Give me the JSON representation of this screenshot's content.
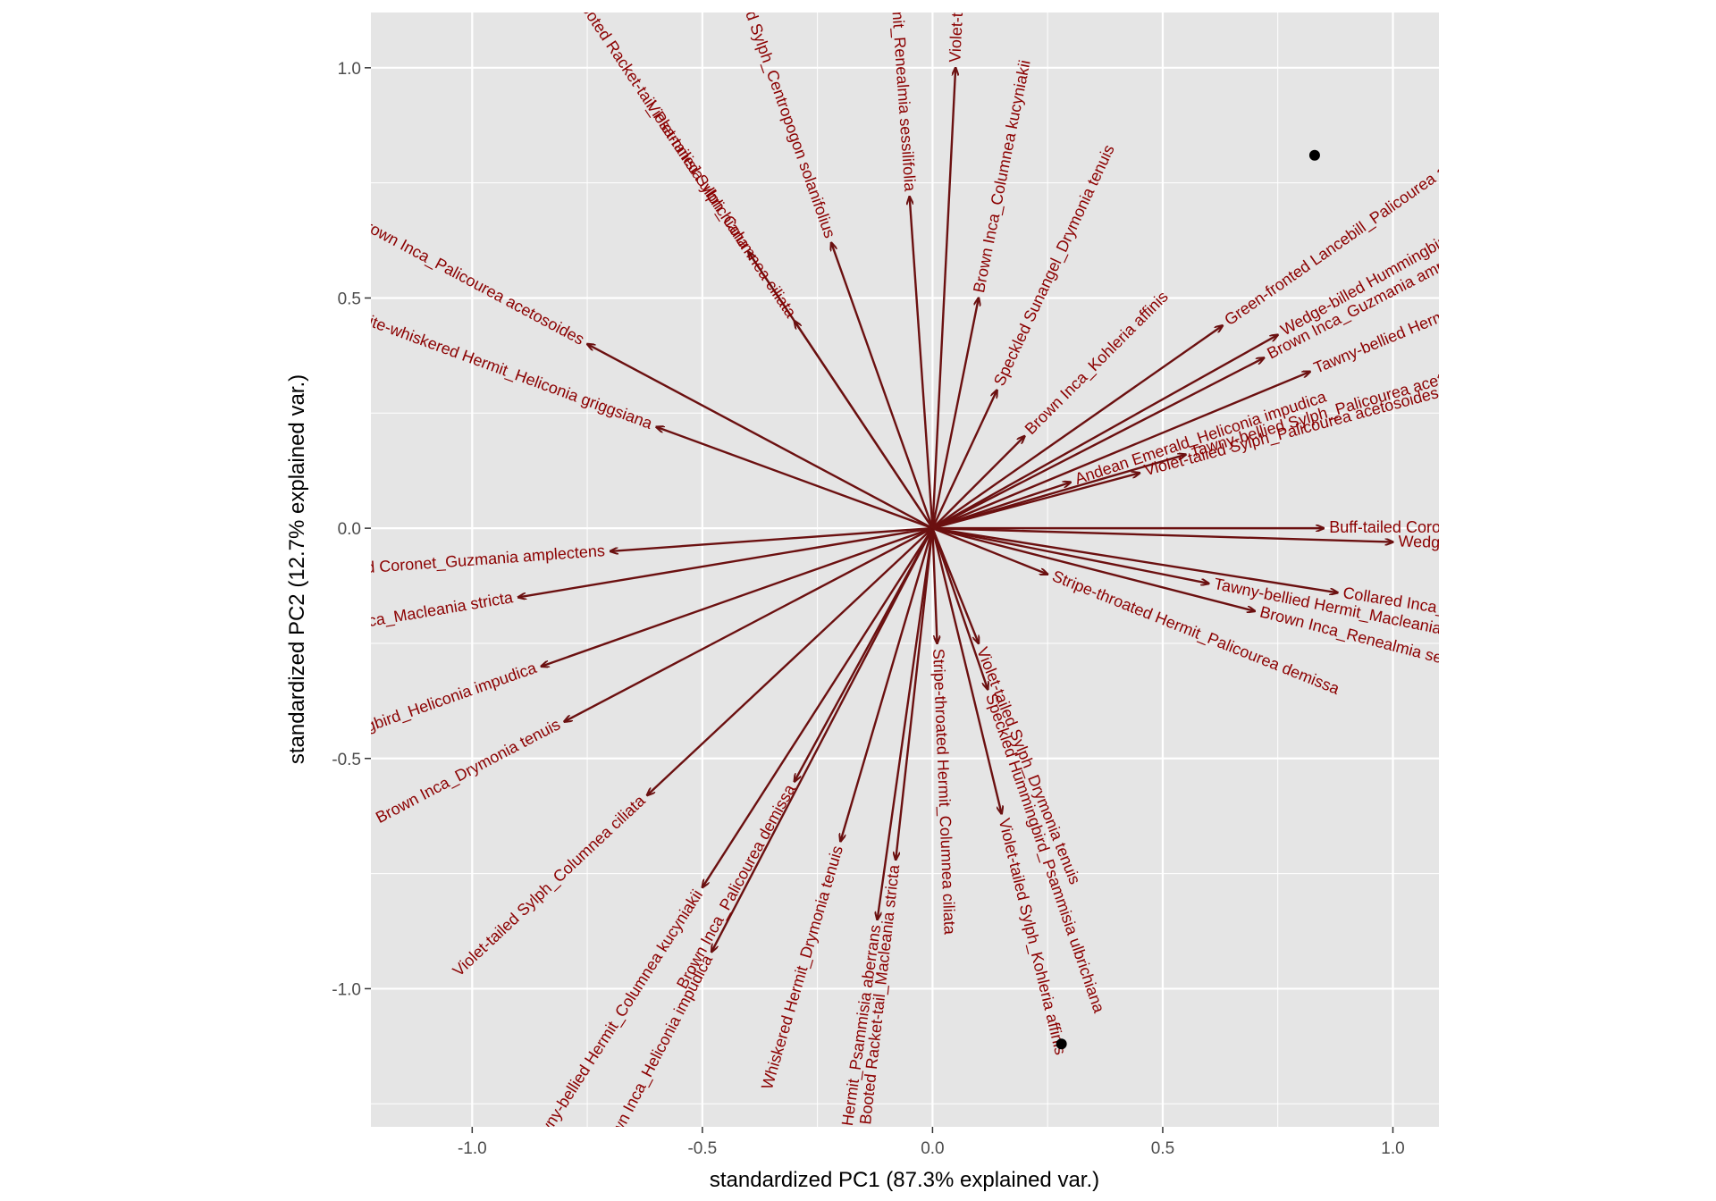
{
  "chart_data": {
    "type": "scatter",
    "subtype": "biplot",
    "title": "",
    "xlabel": "standardized PC1 (87.3% explained var.)",
    "ylabel": "standardized PC2 (12.7% explained var.)",
    "xlim": [
      -1.22,
      1.1
    ],
    "ylim": [
      -1.3,
      1.12
    ],
    "x_ticks": [
      -1.0,
      -0.5,
      0.0,
      0.5,
      1.0
    ],
    "x_tick_labels": [
      "-1.0",
      "-0.5",
      "0.0",
      "0.5",
      "1.0"
    ],
    "y_ticks": [
      -1.0,
      -0.5,
      0.0,
      0.5,
      1.0
    ],
    "y_tick_labels": [
      "-1.0",
      "-0.5",
      "0.0",
      "0.5",
      "1.0"
    ],
    "grid": true,
    "colors": {
      "panel_background": "#e5e5e5",
      "gridline": "#ffffff",
      "arrow": "#6b1010",
      "label": "#8b0000",
      "point": "#000000"
    },
    "points": [
      {
        "x": 0.83,
        "y": 0.81
      },
      {
        "x": 0.28,
        "y": -1.12
      }
    ],
    "arrows": [
      {
        "label": "Green-fronted Lancebill_Palicourea acetosoides",
        "x": 0.63,
        "y": 0.44
      },
      {
        "label": "Wedge-billed Hummingbird_Heliconia griggsiana",
        "x": 0.75,
        "y": 0.42
      },
      {
        "label": "Brown Inca_Guzmania amplectens",
        "x": 0.72,
        "y": 0.37
      },
      {
        "label": "Tawny-bellied Hermit_Columnea kucyniakii",
        "x": 0.82,
        "y": 0.34
      },
      {
        "label": "Tawny-bellied Sylph_Palicourea acetosoides",
        "x": 0.55,
        "y": 0.16
      },
      {
        "label": "Violet-tailed Sylph_Palicourea acetosoides",
        "x": 0.45,
        "y": 0.12
      },
      {
        "label": "Buff-tailed Coronet_Palicourea lineata",
        "x": 0.85,
        "y": 0.0
      },
      {
        "label": "Wedge-billed Hummingbird_Gasteranthus lateralis",
        "x": 1.0,
        "y": -0.03
      },
      {
        "label": "Collared Inca_Pitcairnia sodiroi",
        "x": 0.88,
        "y": -0.14
      },
      {
        "label": "Brown Inca_Renealmia sessilifolia",
        "x": 0.7,
        "y": -0.18
      },
      {
        "label": "Tawny-bellied Hermit_Macleania bullata",
        "x": 0.6,
        "y": -0.12
      },
      {
        "label": "Stripe-throated Hermit_Palicourea demissa",
        "x": 0.25,
        "y": -0.1
      },
      {
        "label": "Violet-tailed Sylph_Kohleria affinis",
        "x": 0.15,
        "y": -0.62
      },
      {
        "label": "Speckled Hummingbird_Psammisia ulbrichiana",
        "x": 0.12,
        "y": -0.35
      },
      {
        "label": "Violet-tailed Sylph_Drymonia tenuis",
        "x": 0.1,
        "y": -0.25
      },
      {
        "label": "Stripe-throated Hermit_Columnea ciliata",
        "x": 0.01,
        "y": -0.25
      },
      {
        "label": "Booted Racket-tail_Macleania stricta",
        "x": -0.08,
        "y": -0.72
      },
      {
        "label": "Tawny-bellied Hermit_Psammisia aberrans",
        "x": -0.12,
        "y": -0.85
      },
      {
        "label": "Whiskered Hermit_Drymonia tenuis",
        "x": -0.2,
        "y": -0.68
      },
      {
        "label": "Brown Inca_Palicourea demissa",
        "x": -0.3,
        "y": -0.55
      },
      {
        "label": "Brown Inca_Heliconia impudica",
        "x": -0.48,
        "y": -0.92
      },
      {
        "label": "Tawny-bellied Hermit_Columnea kucyniakii",
        "x": -0.5,
        "y": -0.78
      },
      {
        "label": "Violet-tailed Sylph_Columnea ciliata",
        "x": -0.62,
        "y": -0.58
      },
      {
        "label": "Brown Inca_Drymonia tenuis",
        "x": -0.8,
        "y": -0.42
      },
      {
        "label": "Speckled Hummingbird_Heliconia impudica",
        "x": -0.85,
        "y": -0.3
      },
      {
        "label": "Collared Inca_Macleania stricta",
        "x": -0.9,
        "y": -0.15
      },
      {
        "label": "Buff-tailed Coronet_Guzmania amplectens",
        "x": -0.7,
        "y": -0.05
      },
      {
        "label": "White-whiskered Hermit_Heliconia griggsiana",
        "x": -0.6,
        "y": 0.22
      },
      {
        "label": "Brown Inca_Palicourea acetosoides",
        "x": -0.75,
        "y": 0.4
      },
      {
        "label": "Booted Racket-tail_Psammisia ulbrichiana",
        "x": -0.4,
        "y": 0.6
      },
      {
        "label": "Violet-tailed Sylph_Columnea ciliata",
        "x": -0.3,
        "y": 0.45
      },
      {
        "label": "Violet-tailed Sylph_Palicourea lineata",
        "x": 0.05,
        "y": 1.0
      },
      {
        "label": "Brown Inca_Columnea kucyniakii",
        "x": 0.1,
        "y": 0.5
      },
      {
        "label": "Speckled Sunangel_Drymonia tenuis",
        "x": 0.14,
        "y": 0.3
      },
      {
        "label": "Brown Inca_Kohleria affinis",
        "x": 0.2,
        "y": 0.2
      },
      {
        "label": "Violet-tailed Sylph_Centropogon solanifolius",
        "x": -0.22,
        "y": 0.62
      },
      {
        "label": "Tawny-bellied Hermit_Renealmia sessilifolia",
        "x": -0.05,
        "y": 0.72
      },
      {
        "label": "Andean Emerald_Heliconia impudica",
        "x": 0.3,
        "y": 0.1
      }
    ]
  }
}
